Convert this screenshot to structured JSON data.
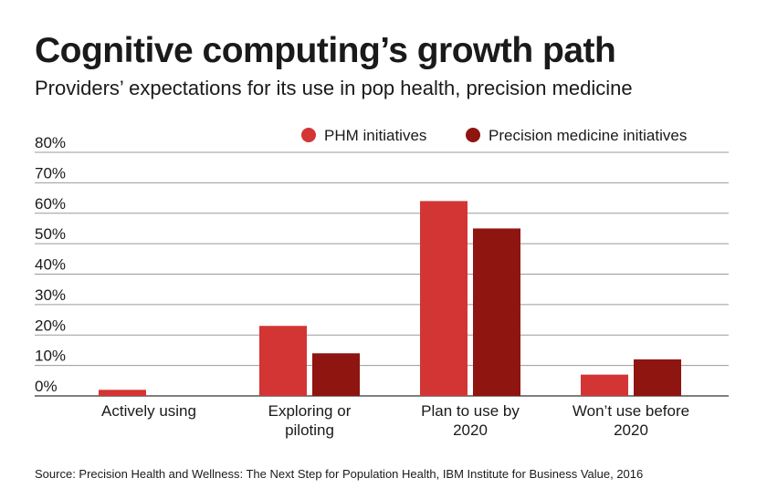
{
  "header": {
    "title": "Cognitive computing’s growth path",
    "subtitle": "Providers’ expectations for its use in pop health, precision medicine"
  },
  "footer": {
    "source": "Source: Precision Health and Wellness: The Next Step for Population Health, IBM Institute for Business Value, 2016"
  },
  "chart_data": {
    "type": "bar",
    "title": "Cognitive computing’s growth path",
    "subtitle": "Providers’ expectations for its use in pop health, precision medicine",
    "categories": [
      [
        "Actively using"
      ],
      [
        "Exploring or",
        "piloting"
      ],
      [
        "Plan to use by",
        "2020"
      ],
      [
        "Won’t use before",
        "2020"
      ]
    ],
    "series": [
      {
        "name": "PHM initiatives",
        "color": "#d33535",
        "values": [
          2,
          23,
          64,
          7
        ]
      },
      {
        "name": "Precision medicine initiatives",
        "color": "#8e1510",
        "values": [
          0,
          14,
          55,
          12
        ]
      }
    ],
    "ylim": [
      0,
      80
    ],
    "yticks": [
      0,
      10,
      20,
      30,
      40,
      50,
      60,
      70,
      80
    ],
    "ytick_labels": [
      "0%",
      "10%",
      "20%",
      "30%",
      "40%",
      "50%",
      "60%",
      "70%",
      "80%"
    ],
    "xlabel": "",
    "ylabel": "",
    "grid": true,
    "legend_position": "top-right"
  }
}
